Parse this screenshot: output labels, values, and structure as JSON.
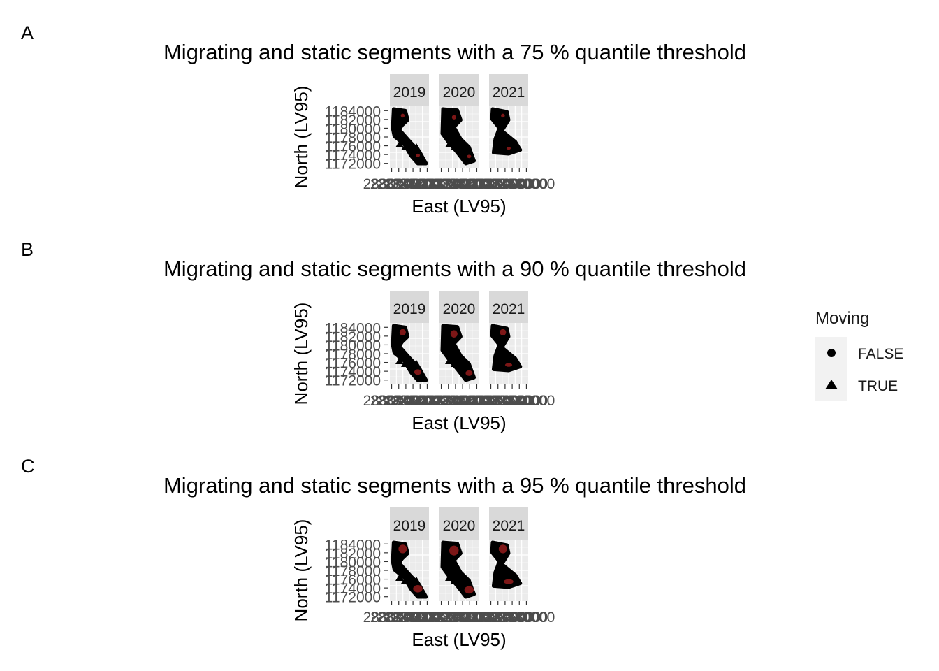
{
  "chart_data": [
    {
      "type": "scatter",
      "tag": "A",
      "title": "Migrating and static segments with a 75 % quantile threshold",
      "xlabel": "East (LV95)",
      "ylabel": "North (LV95)",
      "facets": [
        "2019",
        "2020",
        "2021"
      ],
      "y_ticks": [
        "1184000",
        "1182000",
        "1180000",
        "1178000",
        "1176000",
        "1174000",
        "1172000"
      ],
      "y_range": [
        1171000,
        1185000
      ],
      "x_ticks": [
        "2830000",
        "2832000",
        "2834000",
        "2836000",
        "2838000",
        "2840000"
      ],
      "x_range": [
        2829500,
        2840500
      ],
      "static_core_scale": 0.45
    },
    {
      "type": "scatter",
      "tag": "B",
      "title": "Migrating and static segments with a 90 % quantile threshold",
      "xlabel": "East (LV95)",
      "ylabel": "North (LV95)",
      "facets": [
        "2019",
        "2020",
        "2021"
      ],
      "y_ticks": [
        "1184000",
        "1182000",
        "1180000",
        "1178000",
        "1176000",
        "1174000",
        "1172000"
      ],
      "y_range": [
        1171000,
        1185000
      ],
      "x_ticks": [
        "2830000",
        "2832000",
        "2834000",
        "2836000",
        "2838000",
        "2840000"
      ],
      "x_range": [
        2829500,
        2840500
      ],
      "static_core_scale": 0.75
    },
    {
      "type": "scatter",
      "tag": "C",
      "title": "Migrating and static segments with a 95 % quantile threshold",
      "xlabel": "East (LV95)",
      "ylabel": "North (LV95)",
      "facets": [
        "2019",
        "2020",
        "2021"
      ],
      "y_ticks": [
        "1184000",
        "1182000",
        "1180000",
        "1178000",
        "1176000",
        "1174000",
        "1172000"
      ],
      "y_range": [
        1171000,
        1185000
      ],
      "x_ticks": [
        "2830000",
        "2832000",
        "2834000",
        "2836000",
        "2838000",
        "2840000"
      ],
      "x_range": [
        2829500,
        2840500
      ],
      "static_core_scale": 1.0
    }
  ],
  "legend": {
    "title": "Moving",
    "items": [
      {
        "label": "FALSE",
        "shape": "circle"
      },
      {
        "label": "TRUE",
        "shape": "triangle"
      }
    ],
    "placement": "right"
  },
  "colors": {
    "panel_bg": "#ebebeb",
    "strip_bg": "#d9d9d9",
    "grid": "#ffffff",
    "points": "#000000",
    "static_core": "#8b1a1a",
    "tick_text": "#4d4d4d",
    "legend_key_bg": "#f2f2f2"
  }
}
